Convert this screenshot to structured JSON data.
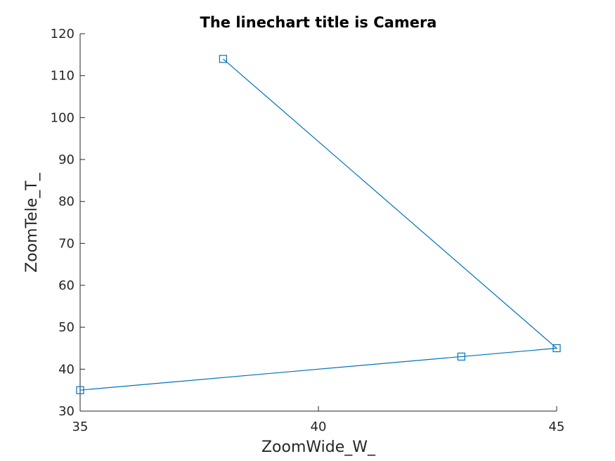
{
  "chart_data": {
    "type": "line",
    "title": "The linechart title is Camera",
    "xlabel": "ZoomWide_W_",
    "ylabel": "ZoomTele_T_",
    "xlim": [
      35,
      45
    ],
    "ylim": [
      30,
      120
    ],
    "xticks": [
      35,
      40,
      45
    ],
    "yticks": [
      30,
      40,
      50,
      60,
      70,
      80,
      90,
      100,
      110,
      120
    ],
    "grid": false,
    "marker": "square",
    "line_color": "#0072BD",
    "series": [
      {
        "x": [
          38,
          45,
          43,
          35
        ],
        "y": [
          114,
          45,
          43,
          35
        ]
      }
    ]
  }
}
